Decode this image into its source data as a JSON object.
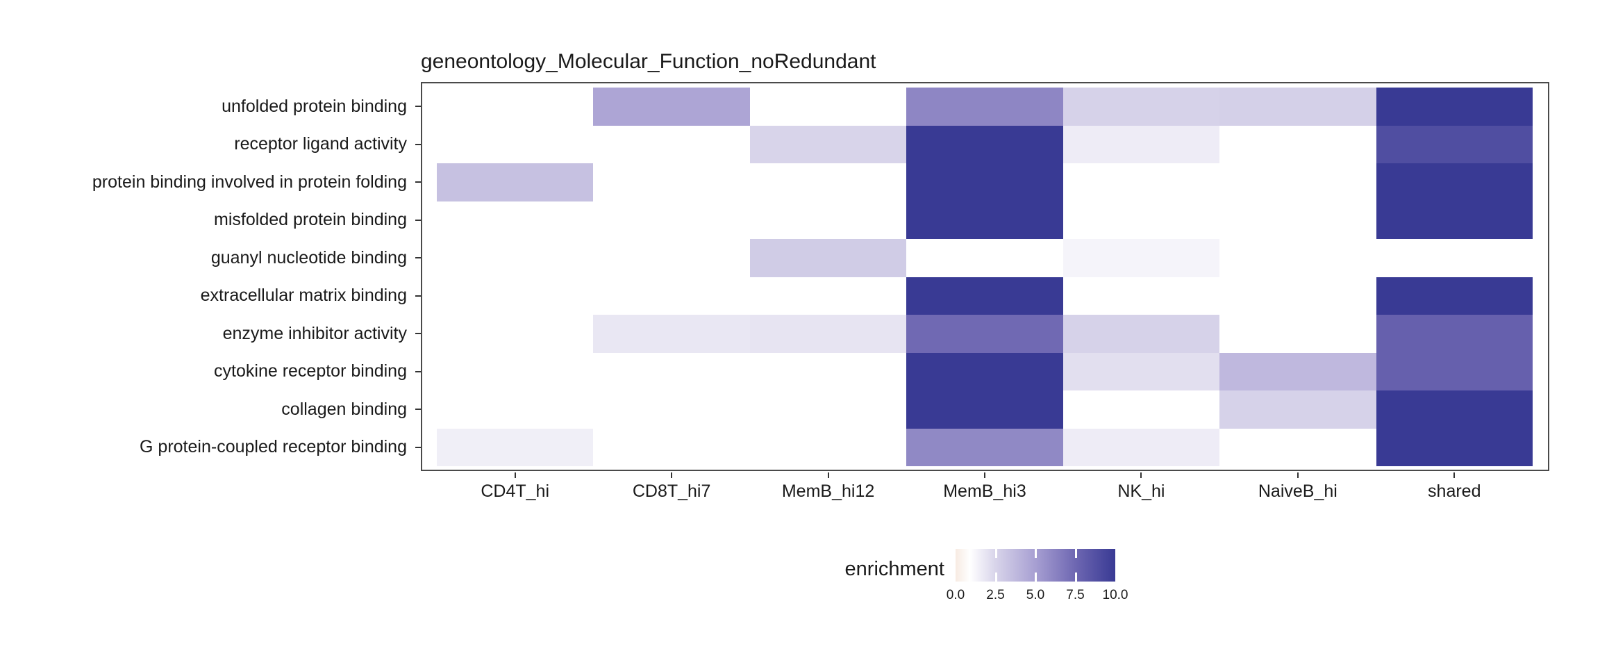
{
  "title": "geneontology_Molecular_Function_noRedundant",
  "legend": {
    "title": "enrichment",
    "tick_labels": [
      "0.0",
      "2.5",
      "5.0",
      "7.5",
      "10.0"
    ]
  },
  "colors": {
    "background": "#ffffff",
    "panel_border": "#4a4a4a",
    "axis_text": "#1a1a1a",
    "tick": "#333333"
  },
  "chart_data": {
    "type": "heatmap",
    "title": "geneontology_Molecular_Function_noRedundant",
    "x_categories": [
      "CD4T_hi",
      "CD8T_hi7",
      "MemB_hi12",
      "MemB_hi3",
      "NK_hi",
      "NaiveB_hi",
      "shared"
    ],
    "y_categories": [
      "unfolded protein binding",
      "receptor ligand activity",
      "protein binding involved in protein folding",
      "misfolded protein binding",
      "guanyl nucleotide binding",
      "extracellular matrix binding",
      "enzyme inhibitor activity",
      "cytokine receptor binding",
      "collagen binding",
      "G protein-coupled receptor binding"
    ],
    "values": [
      [
        null,
        4.7,
        null,
        6.1,
        2.6,
        2.7,
        10.0
      ],
      [
        null,
        null,
        2.5,
        10.0,
        1.6,
        null,
        8.9
      ],
      [
        3.4,
        null,
        null,
        10.0,
        null,
        null,
        10.0
      ],
      [
        null,
        null,
        null,
        10.0,
        null,
        null,
        10.0
      ],
      [
        null,
        null,
        2.9,
        null,
        1.3,
        null,
        null
      ],
      [
        null,
        null,
        null,
        10.0,
        null,
        null,
        10.0
      ],
      [
        null,
        1.8,
        1.9,
        7.4,
        2.6,
        null,
        7.9
      ],
      [
        null,
        null,
        null,
        10.0,
        2.1,
        3.8,
        7.9
      ],
      [
        null,
        null,
        null,
        10.0,
        null,
        2.6,
        10.0
      ],
      [
        1.5,
        null,
        null,
        6.0,
        1.6,
        null,
        10.0
      ]
    ],
    "value_label": "enrichment",
    "value_range": [
      0,
      10
    ],
    "legend_tick_values": [
      0.0,
      2.5,
      5.0,
      7.5,
      10.0
    ],
    "legend_position": "bottom",
    "grid": false,
    "missing_cells": "white",
    "colormap_anchors": [
      {
        "value": 0,
        "color": "#f7ebe2"
      },
      {
        "value": 0.9,
        "color": "#ffffff"
      },
      {
        "value": 2.5,
        "color": "#d8d4ea"
      },
      {
        "value": 5,
        "color": "#a79fd2"
      },
      {
        "value": 7.5,
        "color": "#6e67b2"
      },
      {
        "value": 10,
        "color": "#393a94"
      }
    ]
  }
}
